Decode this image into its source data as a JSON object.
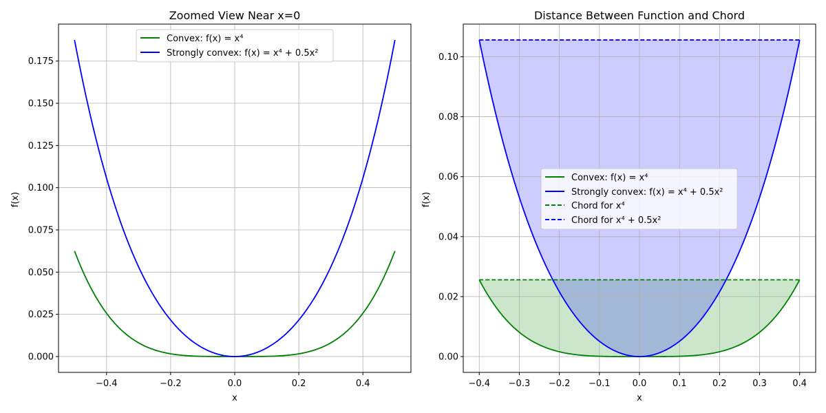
{
  "chart_data": [
    {
      "type": "line",
      "title": "Zoomed View Near x=0",
      "xlabel": "x",
      "ylabel": "f(x)",
      "xlim": [
        -0.55,
        0.55
      ],
      "ylim": [
        -0.0094,
        0.1969
      ],
      "x_range": [
        -0.5,
        0.5
      ],
      "xticks": [
        -0.4,
        -0.2,
        0.0,
        0.2,
        0.4
      ],
      "xtick_labels": [
        "−0.4",
        "−0.2",
        "0.0",
        "0.2",
        "0.4"
      ],
      "yticks": [
        0.0,
        0.025,
        0.05,
        0.075,
        0.1,
        0.125,
        0.15,
        0.175
      ],
      "ytick_labels": [
        "0.000",
        "0.025",
        "0.050",
        "0.075",
        "0.100",
        "0.125",
        "0.150",
        "0.175"
      ],
      "grid": true,
      "legend_position": "upper center",
      "series": [
        {
          "name": "Convex: f(x) = x⁴",
          "function": "x^4",
          "color": "#008000"
        },
        {
          "name": "Strongly convex: f(x) = x⁴ + 0.5x²",
          "function": "x^4 + 0.5x^2",
          "color": "#0000ff"
        }
      ]
    },
    {
      "type": "line",
      "title": "Distance Between Function and Chord",
      "xlabel": "x",
      "ylabel": "f(x)",
      "xlim": [
        -0.44,
        0.44
      ],
      "ylim": [
        -0.00528,
        0.1109
      ],
      "x_range": [
        -0.4,
        0.4
      ],
      "xticks": [
        -0.4,
        -0.3,
        -0.2,
        -0.1,
        0.0,
        0.1,
        0.2,
        0.3,
        0.4
      ],
      "xtick_labels": [
        "−0.4",
        "−0.3",
        "−0.2",
        "−0.1",
        "0.0",
        "0.1",
        "0.2",
        "0.3",
        "0.4"
      ],
      "yticks": [
        0.0,
        0.02,
        0.04,
        0.06,
        0.08,
        0.1
      ],
      "ytick_labels": [
        "0.00",
        "0.02",
        "0.04",
        "0.06",
        "0.08",
        "0.10"
      ],
      "grid": true,
      "legend_position": "center",
      "series": [
        {
          "name": "Convex: f(x) = x⁴",
          "function": "x^4",
          "color": "#008000",
          "style": "solid"
        },
        {
          "name": "Strongly convex: f(x) = x⁴ + 0.5x²",
          "function": "x^4 + 0.5x^2",
          "color": "#0000ff",
          "style": "solid"
        },
        {
          "name": "Chord for x⁴",
          "value": 0.0256,
          "color": "#008000",
          "style": "dashed"
        },
        {
          "name": "Chord for x⁴ + 0.5x²",
          "value": 0.1056,
          "color": "#0000ff",
          "style": "dashed"
        }
      ],
      "fills": [
        {
          "between": [
            "x^4",
            0.0256
          ],
          "color": "#008000",
          "alpha": 0.2
        },
        {
          "between": [
            "x^4 + 0.5x^2",
            0.1056
          ],
          "color": "#0000ff",
          "alpha": 0.2
        }
      ]
    }
  ]
}
